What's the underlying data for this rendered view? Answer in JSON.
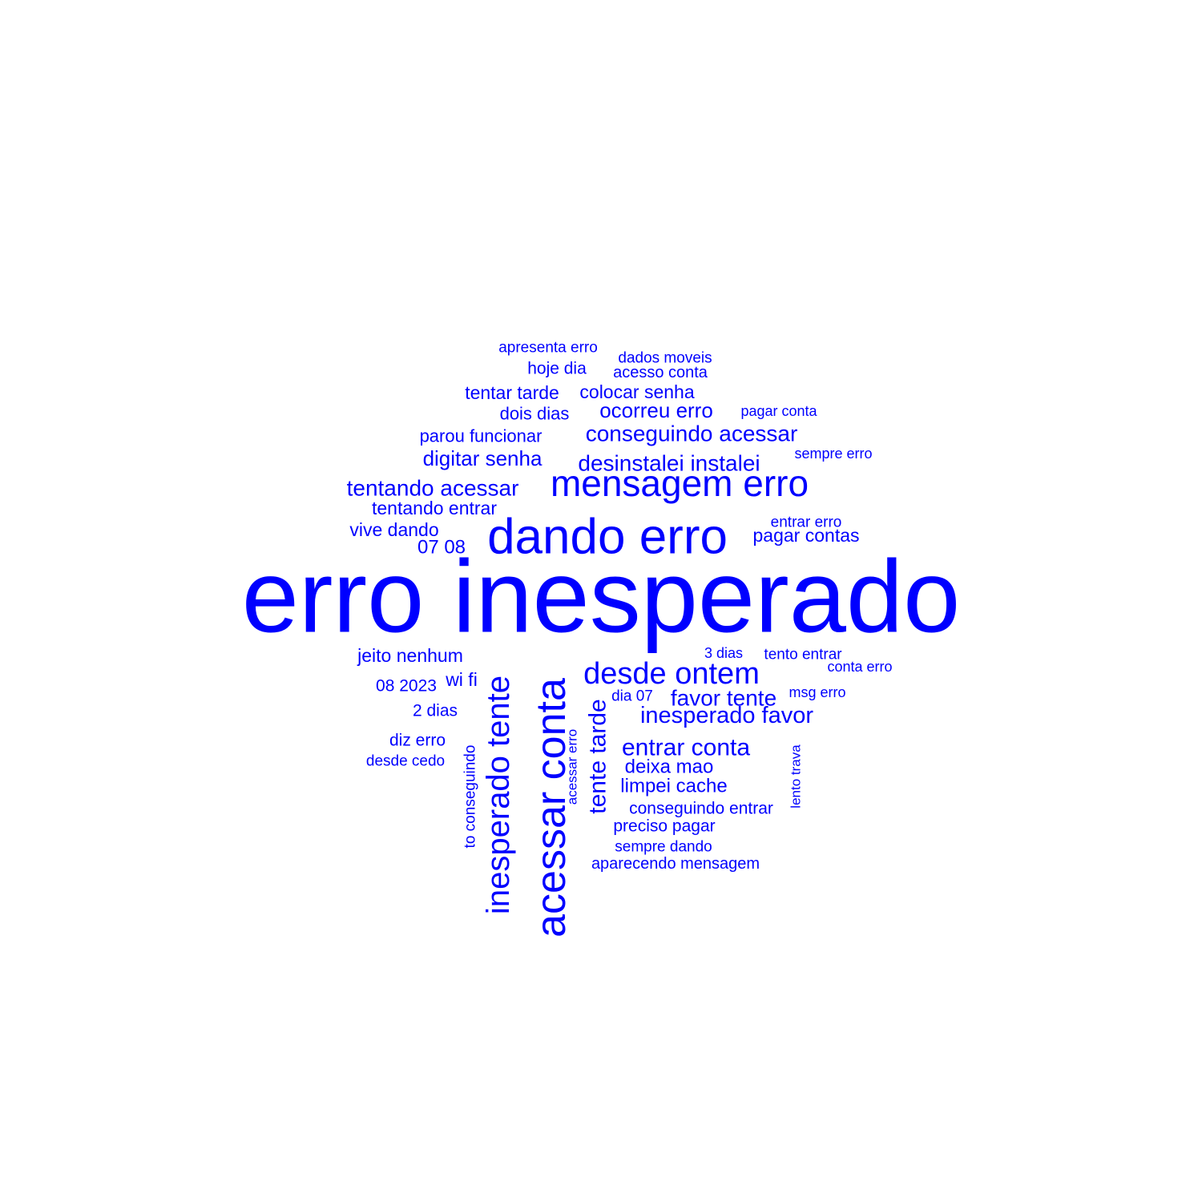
{
  "colors": {
    "text": "#0000ff",
    "background": "#ffffff"
  },
  "words": [
    {
      "text": "erro inesperado"
    },
    {
      "text": "dando erro"
    },
    {
      "text": "mensagem erro"
    },
    {
      "text": "acessar conta"
    },
    {
      "text": "inesperado tente"
    },
    {
      "text": "desde ontem"
    },
    {
      "text": "tente tarde"
    },
    {
      "text": "apresenta erro"
    },
    {
      "text": "dados moveis"
    },
    {
      "text": "hoje dia"
    },
    {
      "text": "acesso conta"
    },
    {
      "text": "tentar tarde"
    },
    {
      "text": "colocar senha"
    },
    {
      "text": "dois dias"
    },
    {
      "text": "ocorreu erro"
    },
    {
      "text": "pagar conta"
    },
    {
      "text": "parou funcionar"
    },
    {
      "text": "conseguindo acessar"
    },
    {
      "text": "digitar senha"
    },
    {
      "text": "desinstalei instalei"
    },
    {
      "text": "sempre erro"
    },
    {
      "text": "tentando acessar"
    },
    {
      "text": "tentando entrar"
    },
    {
      "text": "vive dando"
    },
    {
      "text": "entrar erro"
    },
    {
      "text": "pagar contas"
    },
    {
      "text": "07 08"
    },
    {
      "text": "jeito nenhum"
    },
    {
      "text": "3 dias"
    },
    {
      "text": "tento entrar"
    },
    {
      "text": "conta erro"
    },
    {
      "text": "wi fi"
    },
    {
      "text": "08 2023"
    },
    {
      "text": "dia 07"
    },
    {
      "text": "favor tente"
    },
    {
      "text": "msg erro"
    },
    {
      "text": "inesperado favor"
    },
    {
      "text": "2 dias"
    },
    {
      "text": "diz erro"
    },
    {
      "text": "entrar conta"
    },
    {
      "text": "desde cedo"
    },
    {
      "text": "deixa mao"
    },
    {
      "text": "limpei cache"
    },
    {
      "text": "conseguindo entrar"
    },
    {
      "text": "preciso pagar"
    },
    {
      "text": "sempre dando"
    },
    {
      "text": "aparecendo mensagem"
    },
    {
      "text": "to conseguindo"
    },
    {
      "text": "acessar erro"
    },
    {
      "text": "lento trava"
    }
  ]
}
